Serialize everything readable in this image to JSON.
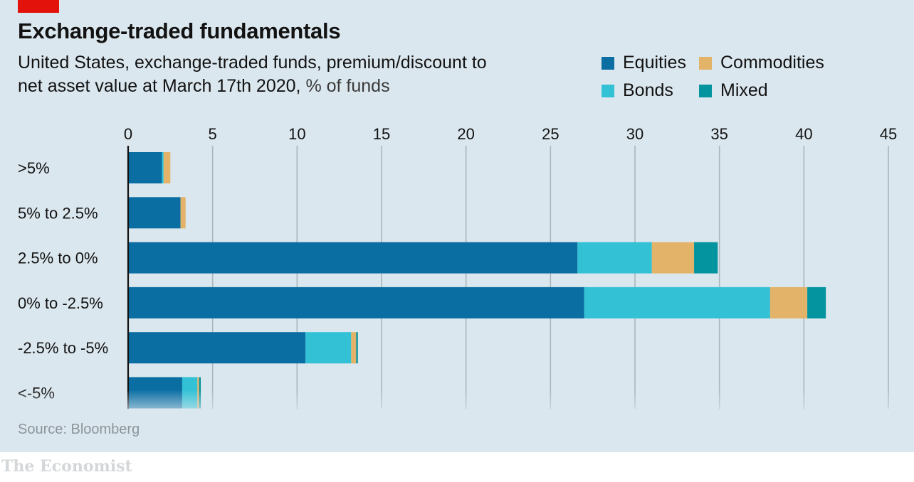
{
  "header": {
    "title": "Exchange-traded fundamentals",
    "subtitle_main": "United States, exchange-traded funds, premium/discount to net asset value at March 17th 2020,",
    "subtitle_unit": "% of funds"
  },
  "footer": {
    "source": "Source: Bloomberg",
    "brand": "The Economist"
  },
  "colors": {
    "background": "#dbe7ee",
    "accent": "#e3120b",
    "grid": "#a9b6bd",
    "axis": "#121212"
  },
  "chart_data": {
    "type": "bar",
    "orientation": "horizontal",
    "stacked": true,
    "categories": [
      ">5%",
      "5% to 2.5%",
      "2.5% to 0%",
      "0% to -2.5%",
      "-2.5% to -5%",
      "<-5%"
    ],
    "series": [
      {
        "name": "Equities",
        "color": "#0a6ea3",
        "values": [
          2.0,
          3.1,
          26.6,
          27.0,
          10.5,
          3.2
        ]
      },
      {
        "name": "Bonds",
        "color": "#32c1d5",
        "values": [
          0.1,
          0.0,
          4.4,
          11.0,
          2.7,
          0.9
        ]
      },
      {
        "name": "Commodities",
        "color": "#e2b369",
        "values": [
          0.4,
          0.3,
          2.5,
          2.2,
          0.3,
          0.1
        ]
      },
      {
        "name": "Mixed",
        "color": "#04949f",
        "values": [
          0.0,
          0.0,
          1.4,
          1.1,
          0.1,
          0.1
        ]
      }
    ],
    "xlim": [
      0,
      45
    ],
    "xticks": [
      0,
      5,
      10,
      15,
      20,
      25,
      30,
      35,
      40,
      45
    ],
    "grid": true,
    "legend_position": "top-right"
  }
}
